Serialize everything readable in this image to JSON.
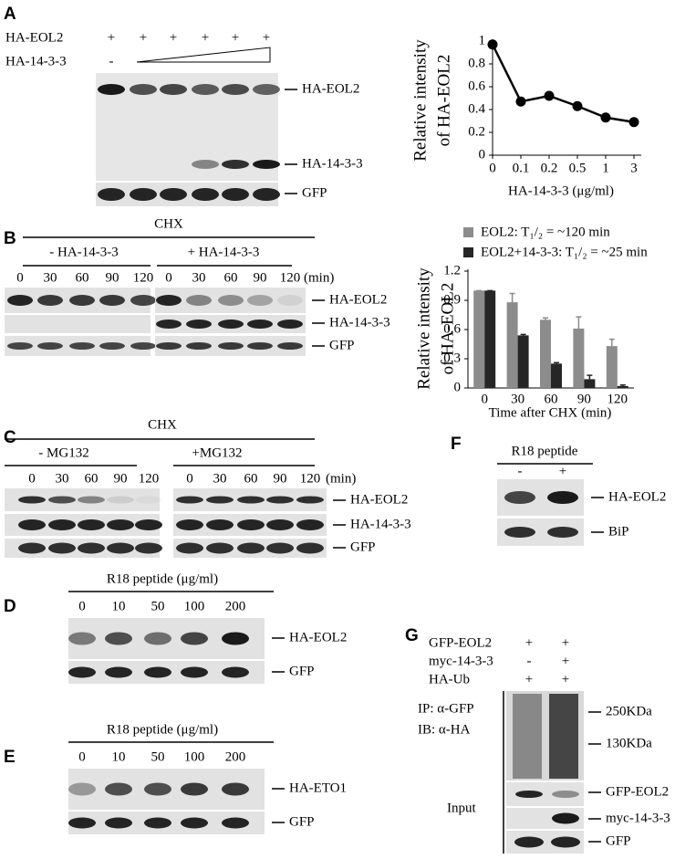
{
  "panel_a": {
    "label": "A",
    "conditions": [
      {
        "name": "HA-EOL2",
        "marks": [
          "+",
          "+",
          "+",
          "+",
          "+",
          "+"
        ]
      },
      {
        "name": "HA-14-3-3",
        "marks": [
          "-"
        ]
      }
    ],
    "bands": [
      "HA-EOL2",
      "HA-14-3-3",
      "GFP"
    ]
  },
  "panel_b": {
    "label": "B",
    "treatment": "CHX",
    "groups": [
      "- HA-14-3-3",
      "+ HA-14-3-3"
    ],
    "times": [
      "0",
      "30",
      "60",
      "90",
      "120"
    ],
    "unit": "(min)",
    "bands": [
      "HA-EOL2",
      "HA-14-3-3",
      "GFP"
    ]
  },
  "panel_c": {
    "label": "C",
    "treatment": "CHX",
    "groups": [
      "- MG132",
      "+MG132"
    ],
    "times": [
      "0",
      "30",
      "60",
      "90",
      "120"
    ],
    "unit": "(min)",
    "bands": [
      "HA-EOL2",
      "HA-14-3-3",
      "GFP"
    ]
  },
  "panel_d": {
    "label": "D",
    "treatment": "R18 peptide (μg/ml)",
    "doses": [
      "0",
      "10",
      "50",
      "100",
      "200"
    ],
    "bands": [
      "HA-EOL2",
      "GFP"
    ]
  },
  "panel_e": {
    "label": "E",
    "treatment": "R18 peptide (μg/ml)",
    "doses": [
      "0",
      "10",
      "50",
      "100",
      "200"
    ],
    "bands": [
      "HA-ETO1",
      "GFP"
    ]
  },
  "panel_f": {
    "label": "F",
    "treatment": "R18 peptide",
    "conditions": [
      "-",
      "+"
    ],
    "bands": [
      "HA-EOL2",
      "BiP"
    ]
  },
  "panel_g": {
    "label": "G",
    "conditions": [
      {
        "name": "GFP-EOL2",
        "marks": [
          "+",
          "+"
        ]
      },
      {
        "name": "myc-14-3-3",
        "marks": [
          "-",
          "+"
        ]
      },
      {
        "name": "HA-Ub",
        "marks": [
          "+",
          "+"
        ]
      }
    ],
    "ip": "IP: α-GFP",
    "ib": "IB: α-HA",
    "markers": [
      "250KDa",
      "130KDa"
    ],
    "input_label": "Input",
    "bands": [
      "GFP-EOL2",
      "myc-14-3-3",
      "GFP"
    ]
  },
  "chart_data": [
    {
      "type": "line",
      "x_label": "HA-14-3-3 (μg/ml)",
      "y_label": [
        "Relative intensity",
        "of  HA-EOL2"
      ],
      "categories": [
        "0",
        "0.1",
        "0.2",
        "0.5",
        "1",
        "3"
      ],
      "values": [
        0.97,
        0.47,
        0.52,
        0.43,
        0.33,
        0.29
      ],
      "color": "#000000",
      "ylim": [
        0,
        1
      ],
      "yticks": [
        0,
        0.2,
        0.4,
        0.6,
        0.8,
        1
      ]
    },
    {
      "type": "bar",
      "x_label": "Time after CHX (min)",
      "y_label": [
        "Relative intensity",
        "of  HA-EOL2"
      ],
      "categories": [
        "0",
        "30",
        "60",
        "90",
        "120"
      ],
      "series": [
        {
          "name": "EOL2: T₁/₂ = ~120 min",
          "color": "#8c8c8c",
          "values": [
            1,
            0.88,
            0.7,
            0.61,
            0.43
          ],
          "errors": [
            0,
            0.09,
            0.02,
            0.12,
            0.07
          ]
        },
        {
          "name": "EOL2+14-3-3: T₁/₂ = ~25 min",
          "color": "#262626",
          "values": [
            1,
            0.54,
            0.25,
            0.09,
            0.02
          ],
          "errors": [
            0,
            0.01,
            0.01,
            0.04,
            0.01
          ]
        }
      ],
      "ylim": [
        0,
        1.2
      ],
      "yticks": [
        0,
        0.3,
        0.6,
        0.9,
        1.2
      ]
    }
  ]
}
